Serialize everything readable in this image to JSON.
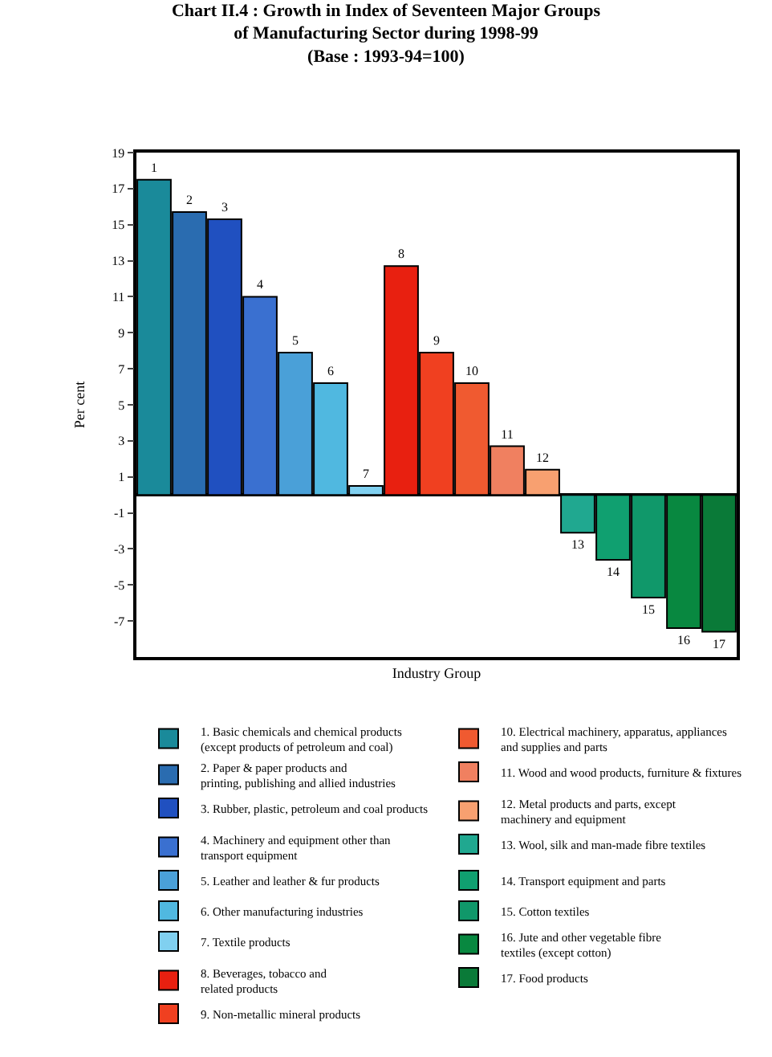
{
  "chart_data": {
    "type": "bar",
    "title": "Chart II.4 : Growth in Index of Seventeen Major Groups\nof Manufacturing Sector during 1998-99\n(Base : 1993-94=100)",
    "xlabel": "Industry Group",
    "ylabel": "Per cent",
    "categories": [
      null,
      null,
      null,
      null,
      null,
      null,
      null,
      null,
      null,
      null,
      null,
      null,
      null,
      null,
      null,
      null,
      null
    ],
    "series": [
      {
        "name": "1. Basic chemicals and chemical products\n(except products of petroleum and coal)",
        "color": "#1a8a9a",
        "values": [
          17.5,
          null,
          null,
          null,
          null,
          null,
          null,
          null,
          null,
          null,
          null,
          null,
          null,
          null,
          null,
          null,
          null
        ]
      },
      {
        "name": "2. Paper & paper products and\nprinting, publishing and allied industries",
        "color": "#2a6cb0",
        "values": [
          null,
          15.7,
          null,
          null,
          null,
          null,
          null,
          null,
          null,
          null,
          null,
          null,
          null,
          null,
          null,
          null,
          null
        ]
      },
      {
        "name": "3. Rubber, plastic, petroleum and coal products",
        "color": "#2050c0",
        "values": [
          null,
          null,
          15.3,
          null,
          null,
          null,
          null,
          null,
          null,
          null,
          null,
          null,
          null,
          null,
          null,
          null,
          null
        ]
      },
      {
        "name": "4. Machinery and equipment other than\ntransport equipment",
        "color": "#3a70d0",
        "values": [
          null,
          null,
          null,
          11.0,
          null,
          null,
          null,
          null,
          null,
          null,
          null,
          null,
          null,
          null,
          null,
          null,
          null
        ]
      },
      {
        "name": "5. Leather and leather & fur products",
        "color": "#4aa0d8",
        "values": [
          null,
          null,
          null,
          null,
          7.9,
          null,
          null,
          null,
          null,
          null,
          null,
          null,
          null,
          null,
          null,
          null,
          null
        ]
      },
      {
        "name": "6. Other manufacturing industries",
        "color": "#50b8e0",
        "values": [
          null,
          null,
          null,
          null,
          null,
          6.2,
          null,
          null,
          null,
          null,
          null,
          null,
          null,
          null,
          null,
          null,
          null
        ]
      },
      {
        "name": "7. Textile products",
        "color": "#80d0f0",
        "values": [
          null,
          null,
          null,
          null,
          null,
          null,
          0.5,
          null,
          null,
          null,
          null,
          null,
          null,
          null,
          null,
          null,
          null
        ]
      },
      {
        "name": "8. Beverages, tobacco and\nrelated products",
        "color": "#e82010",
        "values": [
          null,
          null,
          null,
          null,
          null,
          null,
          null,
          12.7,
          null,
          null,
          null,
          null,
          null,
          null,
          null,
          null,
          null
        ]
      },
      {
        "name": "9. Non-metallic mineral products",
        "color": "#f04020",
        "values": [
          null,
          null,
          null,
          null,
          null,
          null,
          null,
          null,
          7.9,
          null,
          null,
          null,
          null,
          null,
          null,
          null,
          null
        ]
      },
      {
        "name": "10. Electrical machinery, apparatus, appliances\nand supplies and parts",
        "color": "#f05a30",
        "values": [
          null,
          null,
          null,
          null,
          null,
          null,
          null,
          null,
          null,
          6.2,
          null,
          null,
          null,
          null,
          null,
          null,
          null
        ]
      },
      {
        "name": "11. Wood and wood products, furniture & fixtures",
        "color": "#f08060",
        "values": [
          null,
          null,
          null,
          null,
          null,
          null,
          null,
          null,
          null,
          null,
          2.7,
          null,
          null,
          null,
          null,
          null,
          null
        ]
      },
      {
        "name": "12. Metal products and parts, except\nmachinery and equipment",
        "color": "#f8a070",
        "values": [
          null,
          null,
          null,
          null,
          null,
          null,
          null,
          null,
          null,
          null,
          null,
          1.4,
          null,
          null,
          null,
          null,
          null
        ]
      },
      {
        "name": "13. Wool, silk and man-made fibre textiles",
        "color": "#20a890",
        "values": [
          null,
          null,
          null,
          null,
          null,
          null,
          null,
          null,
          null,
          null,
          null,
          null,
          -2.1,
          null,
          null,
          null,
          null
        ]
      },
      {
        "name": "14. Transport equipment and parts",
        "color": "#10a070",
        "values": [
          null,
          null,
          null,
          null,
          null,
          null,
          null,
          null,
          null,
          null,
          null,
          null,
          null,
          -3.6,
          null,
          null,
          null
        ]
      },
      {
        "name": "15. Cotton textiles",
        "color": "#10986a",
        "values": [
          null,
          null,
          null,
          null,
          null,
          null,
          null,
          null,
          null,
          null,
          null,
          null,
          null,
          null,
          -5.7,
          null,
          null
        ]
      },
      {
        "name": "16. Jute and other vegetable fibre\ntextiles (except cotton)",
        "color": "#088840",
        "values": [
          null,
          null,
          null,
          null,
          null,
          null,
          null,
          null,
          null,
          null,
          null,
          null,
          null,
          null,
          null,
          -7.4,
          null
        ]
      },
      {
        "name": "17. Food products",
        "color": "#0a7a38",
        "values": [
          null,
          null,
          null,
          null,
          null,
          null,
          null,
          null,
          null,
          null,
          null,
          null,
          null,
          null,
          null,
          null,
          -7.6
        ]
      }
    ],
    "value_labels": [
      "1",
      "2",
      "3",
      "4",
      "5",
      "6",
      "7",
      "8",
      "9",
      "10",
      "11",
      "12",
      "13",
      "14",
      "15",
      "16",
      "17"
    ],
    "ylim": [
      -9,
      19
    ],
    "yticks": [
      -7,
      -5,
      -3,
      -1,
      1,
      3,
      5,
      7,
      9,
      11,
      13,
      15,
      17,
      19
    ],
    "legend": "bottom"
  }
}
